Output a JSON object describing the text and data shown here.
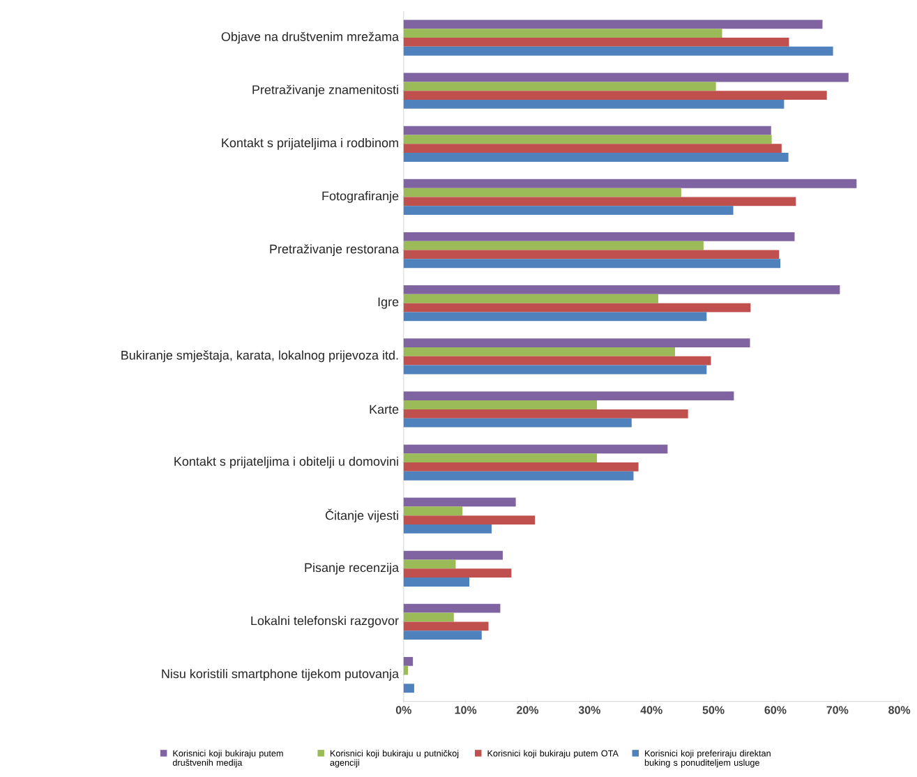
{
  "chart_data": {
    "type": "bar",
    "orientation": "horizontal",
    "legend": "bottom",
    "categories": [
      "Objave na društvenim mrežama",
      "Pretraživanje znamenitosti",
      "Kontakt s prijateljima i rodbinom",
      "Fotografiranje",
      "Pretraživanje restorana",
      "Igre",
      "Bukiranje smještaja, karata, lokalnog prijevoza itd.",
      "Karte",
      "Kontakt s prijateljima i obitelji u domovini",
      "Čitanje vijesti",
      "Pisanje recenzija",
      "Lokalni telefonski razgovor",
      "Nisu koristili smartphone tijekom putovanja"
    ],
    "series": [
      {
        "name": "Korisnici koji bukiraju putem društvenih medija",
        "color": "#8064a2",
        "values": [
          67.6,
          71.8,
          59.3,
          73.1,
          63.1,
          70.4,
          55.9,
          53.3,
          42.6,
          18.1,
          16.0,
          15.6,
          1.5
        ]
      },
      {
        "name": "Korisnici koji bukiraju u putničkoj agenciji",
        "color": "#9bbb59",
        "values": [
          51.4,
          50.4,
          59.4,
          44.8,
          48.4,
          41.1,
          43.8,
          31.2,
          31.2,
          9.5,
          8.4,
          8.1,
          0.7
        ]
      },
      {
        "name": "Korisnici koji bukiraju putem OTA",
        "color": "#c0504d",
        "values": [
          62.2,
          68.3,
          61.0,
          63.3,
          60.6,
          56.0,
          49.6,
          45.9,
          37.9,
          21.2,
          17.4,
          13.7,
          0
        ]
      },
      {
        "name": "Korisnici koji preferiraju direktan buking s ponuditeljem usluge",
        "color": "#4f81bd",
        "values": [
          69.3,
          61.4,
          62.1,
          53.2,
          60.8,
          48.9,
          48.9,
          36.8,
          37.1,
          14.2,
          10.6,
          12.6,
          1.7
        ]
      }
    ],
    "xlim": [
      0,
      80
    ],
    "xticks": [
      {
        "value": 0,
        "label": "0%"
      },
      {
        "value": 10,
        "label": "10%"
      },
      {
        "value": 20,
        "label": "20%"
      },
      {
        "value": 30,
        "label": "30%"
      },
      {
        "value": 40,
        "label": "40%"
      },
      {
        "value": 50,
        "label": "50%"
      },
      {
        "value": 60,
        "label": "60%"
      },
      {
        "value": 70,
        "label": "70%"
      },
      {
        "value": 80,
        "label": "80%"
      }
    ]
  }
}
